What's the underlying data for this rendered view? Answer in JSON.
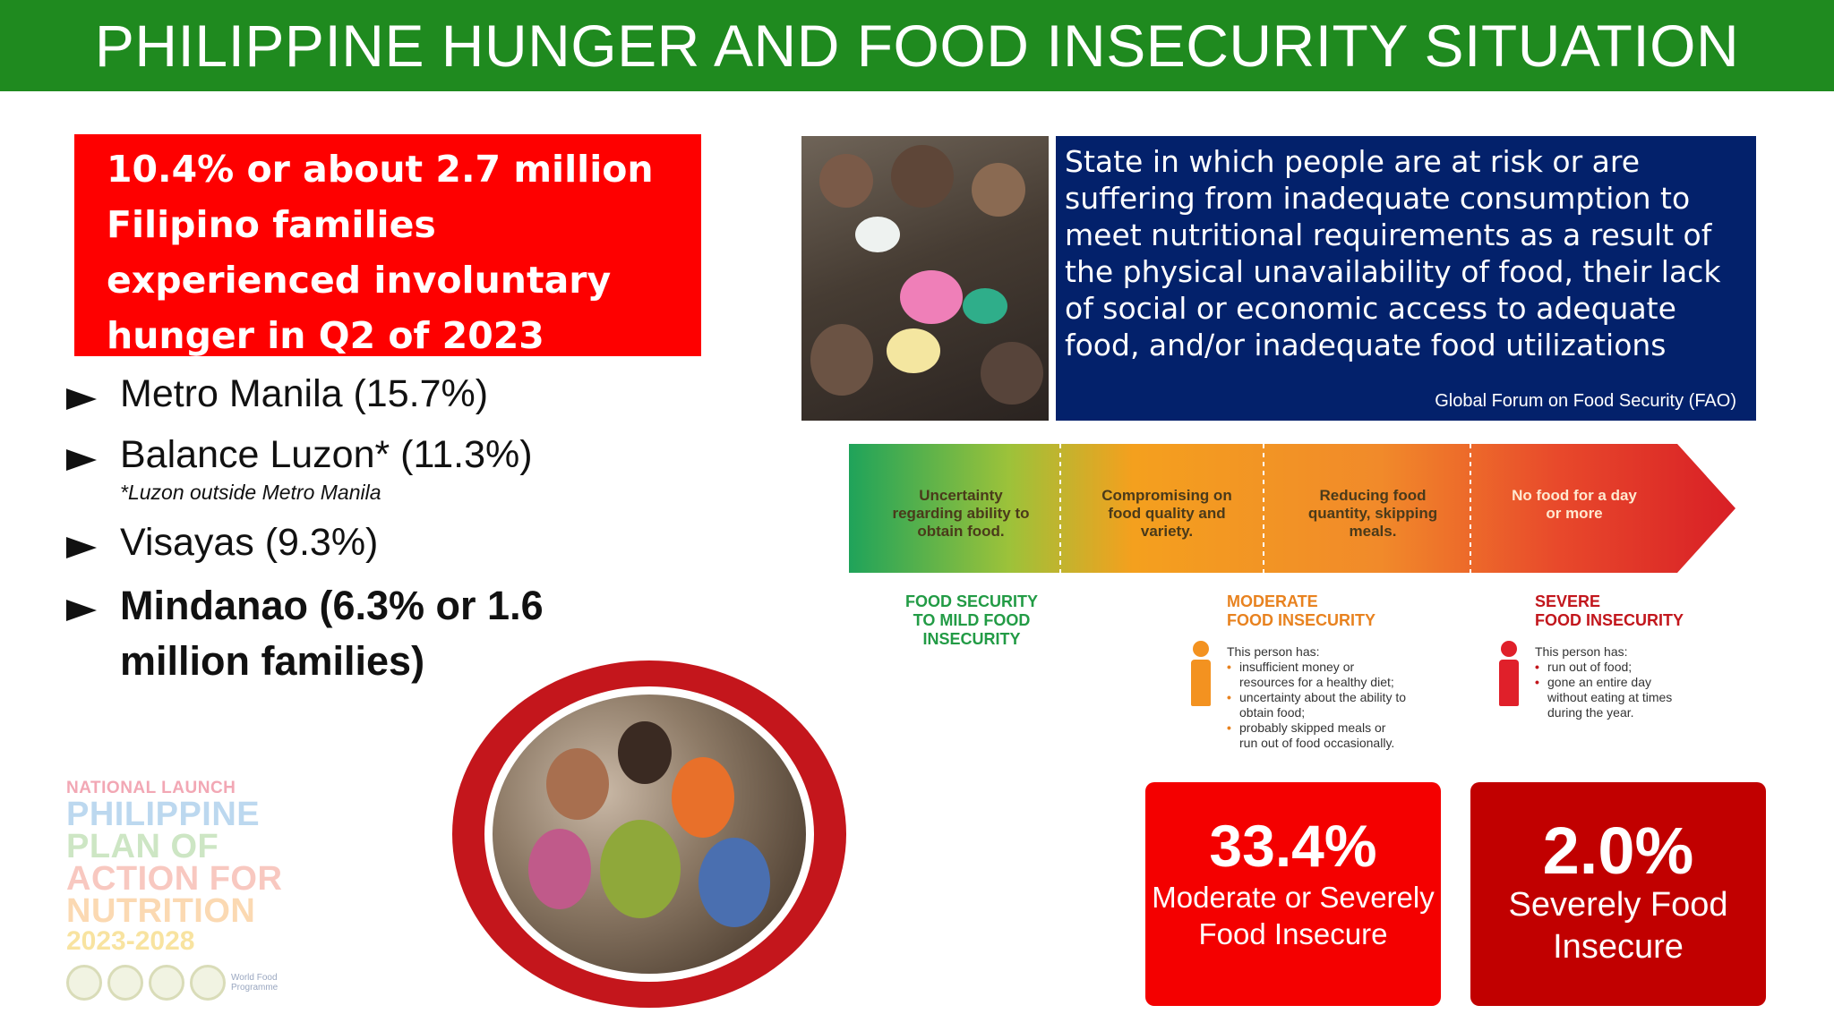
{
  "title": "PHILIPPINE HUNGER AND FOOD INSECURITY SITUATION",
  "headline": "10.4% or about 2.7 million Filipino families experienced involuntary hunger in Q2 of 2023",
  "regions": [
    {
      "label": "Metro Manila (15.7%)",
      "note": ""
    },
    {
      "label": "Balance Luzon* (11.3%)",
      "note": "*Luzon outside Metro Manila"
    },
    {
      "label": "Visayas (9.3%)",
      "note": ""
    },
    {
      "label": "Mindanao (6.3% or 1.6 million families)",
      "note": ""
    }
  ],
  "definition": {
    "text": "State in which people are at risk or are suffering from inadequate consumption to meet nutritional requirements as a result of the physical unavailability of food, their lack of social or economic access to adequate food, and/or inadequate food utilizations",
    "source": "Global Forum on Food Security (FAO)"
  },
  "scale": {
    "stages": [
      "Uncertainty regarding ability to obtain food.",
      "Compromising on food quality and variety.",
      "Reducing food quantity, skipping meals.",
      "No food for a day or more"
    ],
    "levels": [
      {
        "line1": "FOOD SECURITY",
        "line2": "TO MILD FOOD INSECURITY"
      },
      {
        "line1": "MODERATE",
        "line2": "FOOD INSECURITY"
      },
      {
        "line1": "SEVERE",
        "line2": "FOOD INSECURITY"
      }
    ],
    "moderate_intro": "This person has:",
    "moderate_items": [
      "insufficient money or resources for a healthy diet;",
      "uncertainty about the ability to obtain food;",
      "probably skipped meals or run out of food occasionally."
    ],
    "severe_intro": "This person has:",
    "severe_items": [
      "run out of food;",
      "gone an entire day without eating at times during the year."
    ]
  },
  "stats": {
    "moderate": {
      "value": "33.4%",
      "label": "Moderate or Severely Food Insecure"
    },
    "severe": {
      "value": "2.0%",
      "label": "Severely Food Insecure"
    }
  },
  "logo": {
    "small": "NATIONAL LAUNCH",
    "line1": "PHILIPPINE",
    "line2": "PLAN OF",
    "line3": "ACTION FOR",
    "line4": "NUTRITION",
    "years": "2023-2028",
    "partner": "World Food Programme"
  },
  "colors": {
    "title_bar": "#1f8a1f",
    "headline_box": "#fe0000",
    "definition_box": "#03216b",
    "moderate_card": "#f40000",
    "severe_card": "#c10000"
  }
}
